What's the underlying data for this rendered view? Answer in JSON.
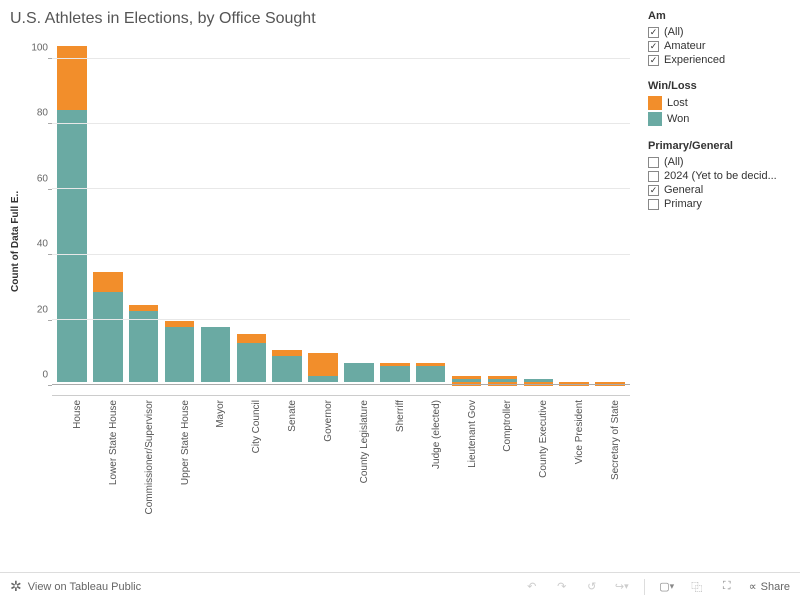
{
  "title": "U.S. Athletes in Elections, by Office Sought",
  "yaxis": {
    "label": "Count of Data Full E..",
    "min": -3,
    "max": 107,
    "ticks": [
      0,
      20,
      40,
      60,
      80,
      100
    ]
  },
  "colors": {
    "won": "#6aaaa3",
    "lost": "#f28e2b",
    "grid": "#e8e8e8",
    "axis": "#aaa"
  },
  "series_order": [
    "won",
    "lost"
  ],
  "bars": [
    {
      "label": "House",
      "won": 84,
      "lost": 20
    },
    {
      "label": "Lower State House",
      "won": 28,
      "lost": 6
    },
    {
      "label": "Commissioner/Supervisor",
      "won": 22,
      "lost": 2
    },
    {
      "label": "Upper State House",
      "won": 17,
      "lost": 2
    },
    {
      "label": "Mayor",
      "won": 17,
      "lost": 0
    },
    {
      "label": "City Council",
      "won": 12,
      "lost": 3
    },
    {
      "label": "Senate",
      "won": 8,
      "lost": 2
    },
    {
      "label": "Governor",
      "won": 2,
      "lost": 7
    },
    {
      "label": "County Legislature",
      "won": 6,
      "lost": 0
    },
    {
      "label": "Sherriff",
      "won": 5,
      "lost": 1
    },
    {
      "label": "Judge (elected)",
      "won": 5,
      "lost": 1
    },
    {
      "label": "Lieutenant Gov",
      "won": 1,
      "lost": 1,
      "neg": -1
    },
    {
      "label": "Comptroller",
      "won": 1,
      "lost": 1,
      "neg": -1
    },
    {
      "label": "County Executive",
      "won": 1,
      "lost": 0,
      "neg": -1
    },
    {
      "label": "Vice President",
      "won": 0,
      "lost": 0,
      "neg": -1
    },
    {
      "label": "Secretary of State",
      "won": 0,
      "lost": 0,
      "neg": -1
    }
  ],
  "filters": {
    "am": {
      "title": "Am",
      "items": [
        {
          "label": "(All)",
          "checked": true
        },
        {
          "label": "Amateur",
          "checked": true
        },
        {
          "label": "Experienced",
          "checked": true
        }
      ]
    },
    "winloss": {
      "title": "Win/Loss",
      "items": [
        {
          "label": "Lost",
          "color": "#f28e2b"
        },
        {
          "label": "Won",
          "color": "#6aaaa3"
        }
      ]
    },
    "pg": {
      "title": "Primary/General",
      "items": [
        {
          "label": "(All)",
          "checked": false
        },
        {
          "label": "2024 (Yet to be decid...",
          "checked": false
        },
        {
          "label": "General",
          "checked": true
        },
        {
          "label": "Primary",
          "checked": false
        }
      ]
    }
  },
  "toolbar": {
    "view_label": "View on Tableau Public",
    "share": "Share"
  }
}
